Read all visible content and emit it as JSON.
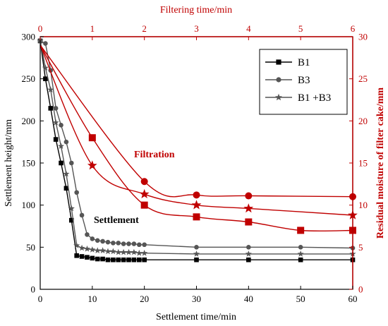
{
  "chart_data": {
    "type": "line",
    "title": "",
    "x_bottom": {
      "label": "Settlement time/min",
      "range": [
        0,
        60
      ],
      "ticks": [
        0,
        10,
        20,
        30,
        40,
        50,
        60
      ]
    },
    "x_top": {
      "label": "Filtering time/min",
      "range": [
        0,
        6
      ],
      "ticks": [
        0,
        1,
        2,
        3,
        4,
        5,
        6
      ]
    },
    "y_left": {
      "label": "Settlement height/mm",
      "range": [
        0,
        300
      ],
      "ticks": [
        0,
        50,
        100,
        150,
        200,
        250,
        300
      ]
    },
    "y_right": {
      "label": "Residual moisture of filter cake/mm",
      "range": [
        0,
        30
      ],
      "ticks": [
        0,
        5,
        10,
        15,
        20,
        25,
        30
      ]
    },
    "grid": false,
    "legend_position": "top-right",
    "annotations": {
      "settlement": "Settlement",
      "filtration": "Filtration"
    },
    "colors": {
      "settlement_series": [
        "#000000",
        "#555555",
        "#555555"
      ],
      "filtration_series": "#c00000"
    },
    "settlement_series": [
      {
        "name": "B1",
        "marker": "square",
        "x": [
          0,
          1,
          2,
          3,
          4,
          5,
          6,
          7,
          8,
          9,
          10,
          11,
          12,
          13,
          14,
          15,
          16,
          17,
          18,
          19,
          20,
          30,
          40,
          50,
          60
        ],
        "y": [
          295,
          250,
          215,
          178,
          150,
          120,
          82,
          40,
          39,
          38,
          37,
          36,
          36,
          35,
          35,
          35,
          35,
          35,
          35,
          35,
          35,
          35,
          35,
          35,
          35
        ]
      },
      {
        "name": "B3",
        "marker": "circle",
        "x": [
          0,
          1,
          2,
          3,
          4,
          5,
          6,
          7,
          8,
          9,
          10,
          11,
          12,
          13,
          14,
          15,
          16,
          17,
          18,
          19,
          20,
          30,
          40,
          50,
          60
        ],
        "y": [
          295,
          292,
          260,
          215,
          195,
          175,
          150,
          115,
          88,
          65,
          60,
          58,
          57,
          56,
          55,
          55,
          54,
          54,
          54,
          53,
          53,
          50,
          50,
          50,
          49
        ]
      },
      {
        "name": "B1 +B3",
        "marker": "star",
        "x": [
          0,
          1,
          2,
          3,
          4,
          5,
          6,
          7,
          8,
          9,
          10,
          11,
          12,
          13,
          14,
          15,
          16,
          17,
          18,
          19,
          20,
          30,
          40,
          50,
          60
        ],
        "y": [
          295,
          263,
          237,
          198,
          170,
          137,
          96,
          52,
          49,
          48,
          47,
          46,
          46,
          45,
          45,
          44,
          44,
          44,
          44,
          43,
          43,
          42,
          42,
          42,
          42
        ]
      }
    ],
    "filtration_series": [
      {
        "name": "B1",
        "marker": "square",
        "x": [
          0,
          1,
          2,
          3,
          4,
          5,
          6
        ],
        "y": [
          29,
          18,
          10,
          8.6,
          8,
          7,
          7
        ]
      },
      {
        "name": "B3",
        "marker": "circle",
        "x": [
          0,
          2,
          3,
          4,
          6
        ],
        "y": [
          29,
          12.8,
          11.2,
          11.1,
          11
        ]
      },
      {
        "name": "B1 +B3",
        "marker": "star",
        "x": [
          0,
          1,
          2,
          3,
          4,
          6
        ],
        "y": [
          29,
          14.7,
          11.3,
          10,
          9.6,
          8.8
        ]
      }
    ]
  }
}
